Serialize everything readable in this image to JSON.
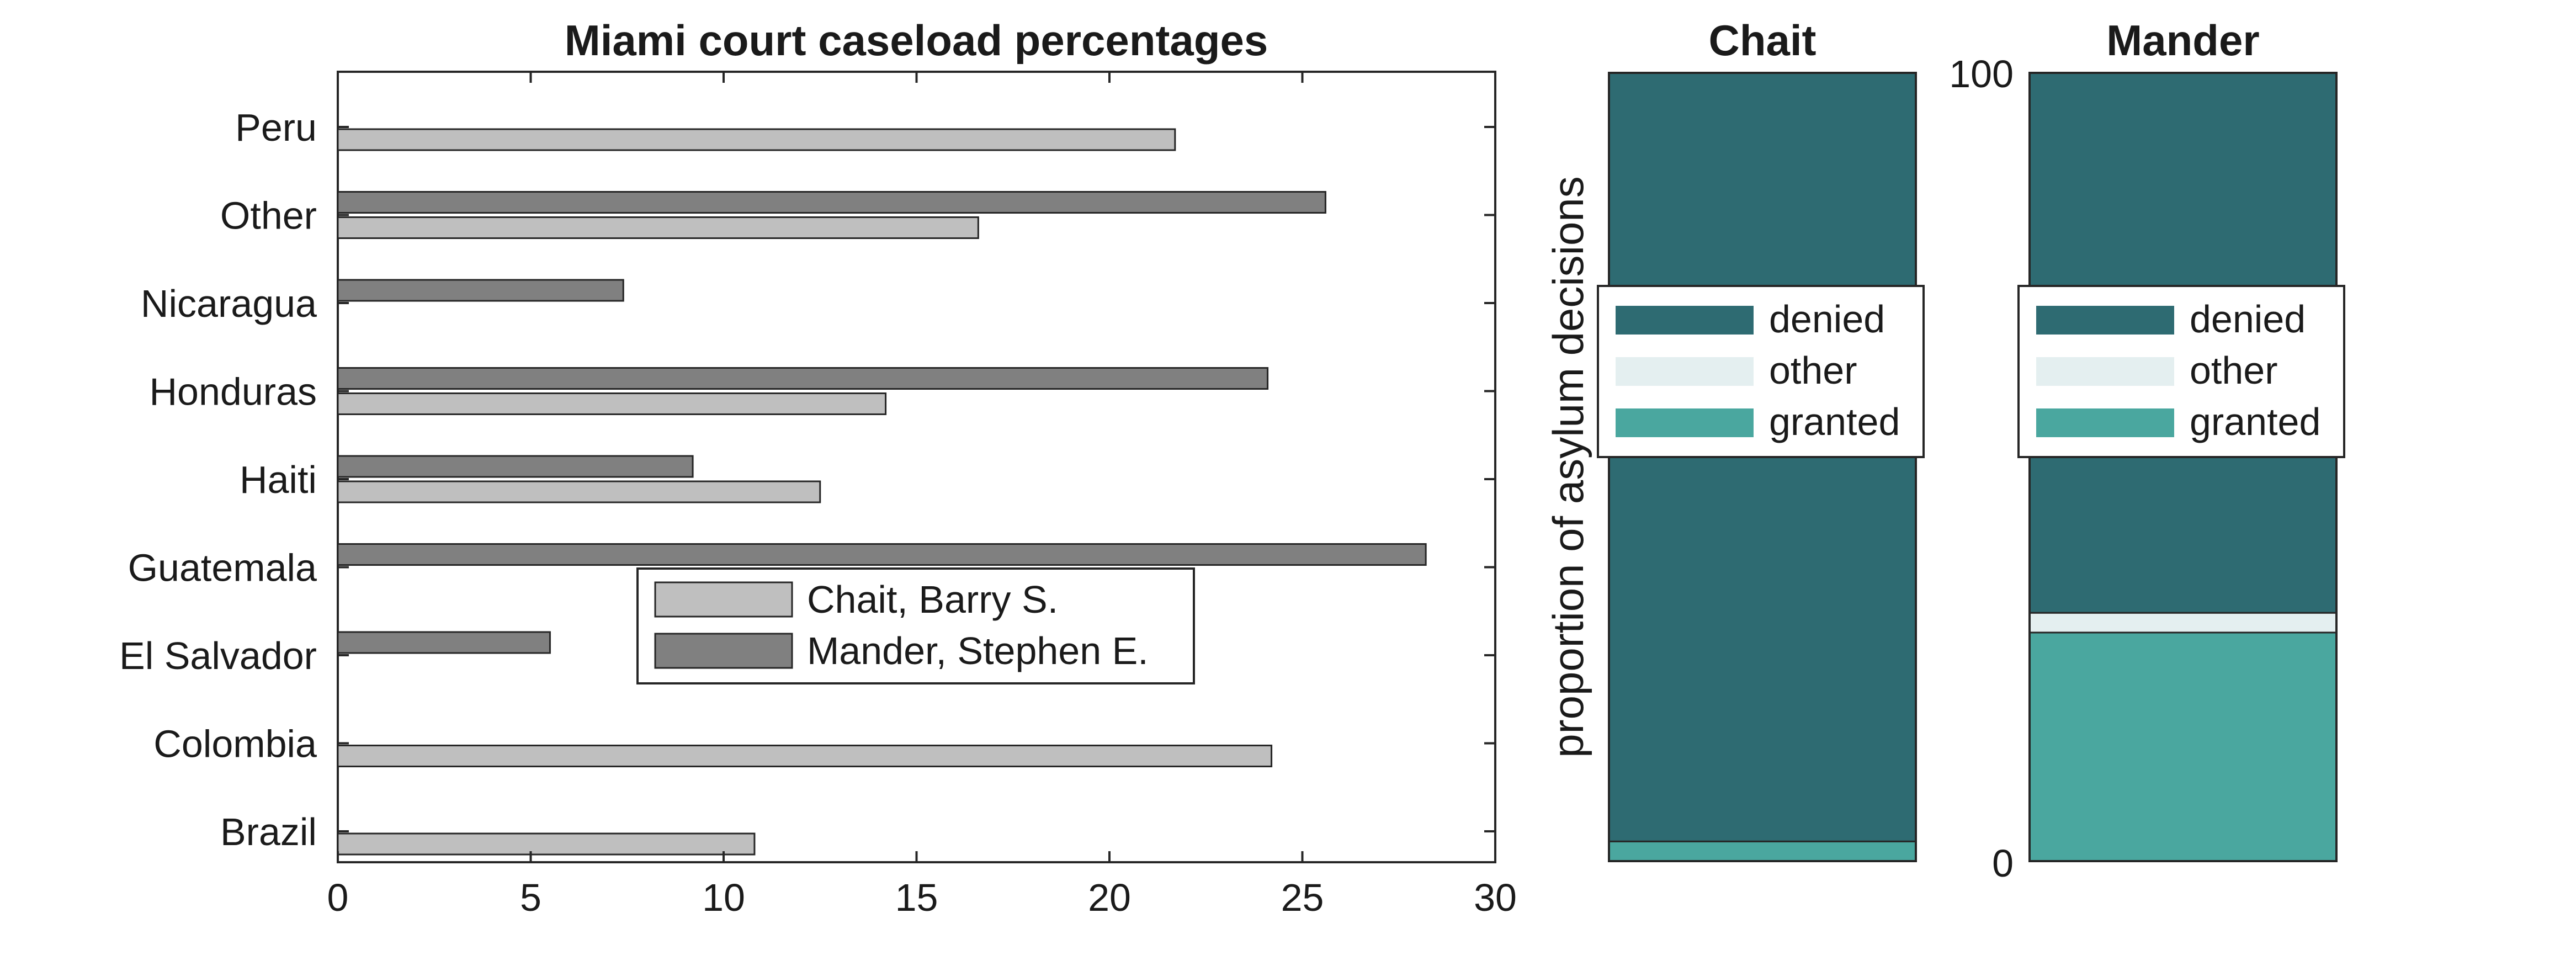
{
  "chart_data": [
    {
      "type": "bar",
      "orientation": "horizontal",
      "title": "Miami court caseload percentages",
      "xlabel": "",
      "ylabel": "",
      "categories": [
        "Peru",
        "Other",
        "Nicaragua",
        "Honduras",
        "Haiti",
        "Guatemala",
        "El Salvador",
        "Colombia",
        "Brazil"
      ],
      "xlim": [
        0,
        30
      ],
      "xticks": [
        "0",
        "5",
        "10",
        "15",
        "20",
        "25",
        "30"
      ],
      "grid": false,
      "legend_position": "center",
      "series": [
        {
          "name": "Chait, Barry S.",
          "color": "#bfbfbf",
          "values": [
            21.7,
            16.6,
            0,
            14.2,
            12.5,
            0,
            0,
            24.2,
            10.8
          ]
        },
        {
          "name": "Mander, Stephen E.",
          "color": "#808080",
          "values": [
            0,
            25.6,
            7.4,
            24.1,
            9.2,
            28.2,
            5.5,
            0,
            0
          ]
        }
      ]
    },
    {
      "type": "bar",
      "stacked": true,
      "title": "Chait",
      "ylabel": "proportion of asylum decisions",
      "ylim": [
        0,
        100
      ],
      "legend_position": "center",
      "series": [
        {
          "name": "denied",
          "color": "#2e6b72",
          "value": 97.5
        },
        {
          "name": "other",
          "color": "#e4eff0",
          "value": 0
        },
        {
          "name": "granted",
          "color": "#4aa79f",
          "value": 2.5
        }
      ]
    },
    {
      "type": "bar",
      "stacked": true,
      "title": "Mander",
      "ylim": [
        0,
        100
      ],
      "yticks": [
        "0",
        "100"
      ],
      "legend_position": "center",
      "series": [
        {
          "name": "denied",
          "color": "#2e6b72",
          "value": 68.5
        },
        {
          "name": "other",
          "color": "#e4eff0",
          "value": 2.5
        },
        {
          "name": "granted",
          "color": "#4aa79f",
          "value": 29
        }
      ]
    }
  ]
}
